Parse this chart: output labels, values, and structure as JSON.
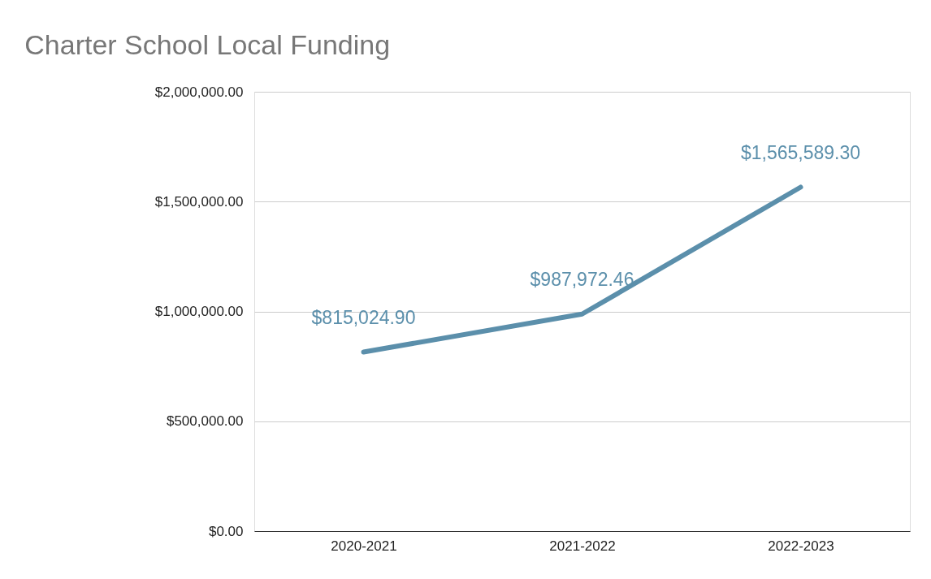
{
  "chart_data": {
    "type": "line",
    "title": "Charter School Local Funding",
    "categories": [
      "2020-2021",
      "2021-2022",
      "2022-2023"
    ],
    "series": [
      {
        "color": "#5b8fab",
        "values": [
          815024.9,
          987972.46,
          1565589.3
        ],
        "value_labels": [
          "$815,024.90",
          "$987,972.46",
          "$1,565,589.30"
        ]
      }
    ],
    "ylim": [
      0,
      2000000
    ],
    "yticks": [
      {
        "value": 0,
        "label": "$0.00"
      },
      {
        "value": 500000,
        "label": "$500,000.00"
      },
      {
        "value": 1000000,
        "label": "$1,000,000.00"
      },
      {
        "value": 1500000,
        "label": "$1,500,000.00"
      },
      {
        "value": 2000000,
        "label": "$2,000,000.00"
      }
    ],
    "grid": "y",
    "marker": "none",
    "line_style": "solid"
  }
}
